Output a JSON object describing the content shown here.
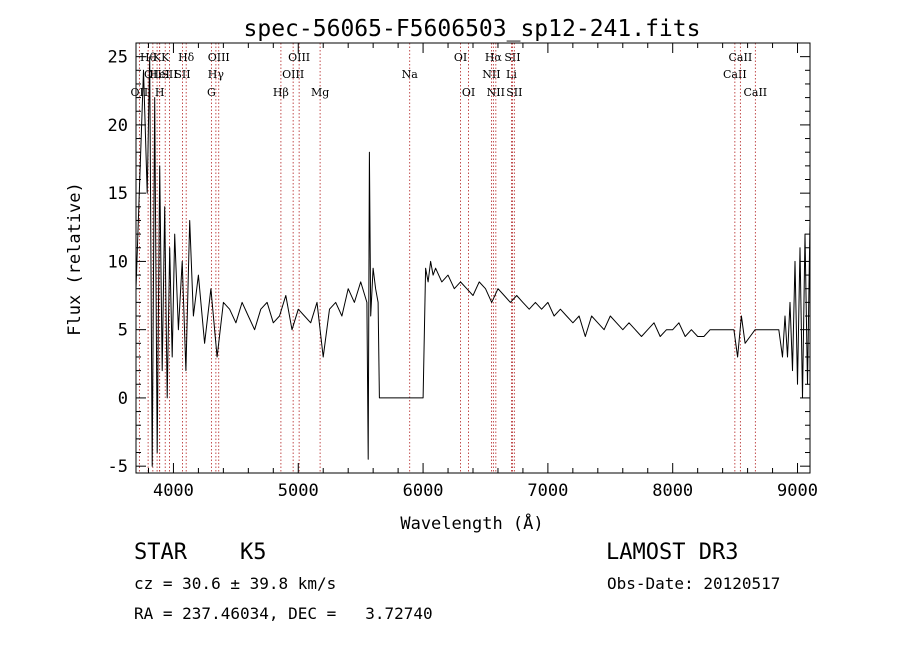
{
  "chart_data": {
    "type": "line",
    "title": "spec-56065-F5606503_sp12-241.fits",
    "xlabel": "Wavelength (Å)",
    "ylabel": "Flux (relative)",
    "xlim": [
      3700,
      9100
    ],
    "ylim": [
      -5.5,
      26
    ],
    "xticks": [
      4000,
      5000,
      6000,
      7000,
      8000,
      9000
    ],
    "yticks": [
      -5,
      0,
      5,
      10,
      15,
      20,
      25
    ],
    "grid": false,
    "series": [
      {
        "color": "#000000",
        "x": [
          3700,
          3760,
          3790,
          3810,
          3830,
          3850,
          3870,
          3890,
          3910,
          3930,
          3950,
          3970,
          3990,
          4010,
          4040,
          4070,
          4100,
          4130,
          4160,
          4200,
          4250,
          4300,
          4350,
          4400,
          4450,
          4500,
          4550,
          4600,
          4650,
          4700,
          4750,
          4800,
          4850,
          4900,
          4950,
          5000,
          5050,
          5100,
          5150,
          5200,
          5250,
          5300,
          5350,
          5400,
          5450,
          5500,
          5550,
          5560,
          5570,
          5580,
          5600,
          5620,
          5640,
          5650,
          5660,
          5680,
          5700,
          5800,
          5900,
          5960,
          5980,
          6000,
          6020,
          6040,
          6060,
          6080,
          6100,
          6150,
          6200,
          6250,
          6300,
          6350,
          6400,
          6450,
          6500,
          6550,
          6600,
          6650,
          6700,
          6750,
          6800,
          6850,
          6900,
          6950,
          7000,
          7050,
          7100,
          7150,
          7200,
          7250,
          7300,
          7350,
          7400,
          7450,
          7500,
          7550,
          7600,
          7650,
          7700,
          7750,
          7800,
          7850,
          7900,
          7950,
          8000,
          8050,
          8100,
          8150,
          8200,
          8250,
          8300,
          8350,
          8400,
          8450,
          8490,
          8520,
          8550,
          8580,
          8620,
          8660,
          8700,
          8750,
          8800,
          8850,
          8880,
          8900,
          8920,
          8940,
          8960,
          8980,
          9000,
          9020,
          9040,
          9060,
          9080,
          9100
        ],
        "y": [
          8.0,
          24.0,
          15.0,
          25.0,
          -5.0,
          22.0,
          -4.0,
          17.0,
          2.0,
          14.0,
          0.0,
          11.0,
          3.0,
          12.0,
          5.0,
          10.0,
          2.0,
          13.0,
          6.0,
          9.0,
          4.0,
          8.0,
          3.0,
          7.0,
          6.5,
          5.5,
          7.0,
          6.0,
          5.0,
          6.5,
          7.0,
          5.5,
          6.0,
          7.5,
          5.0,
          6.5,
          6.0,
          5.5,
          7.0,
          3.0,
          6.5,
          7.0,
          6.0,
          8.0,
          7.0,
          8.5,
          7.0,
          -4.5,
          18.0,
          6.0,
          9.5,
          8.0,
          7.0,
          0.0,
          0.0,
          0.0,
          0.0,
          0.0,
          0.0,
          0.0,
          0.0,
          0.0,
          9.5,
          8.5,
          10.0,
          9.0,
          9.5,
          8.5,
          9.0,
          8.0,
          8.5,
          8.0,
          7.5,
          8.5,
          8.0,
          7.0,
          8.0,
          7.5,
          7.0,
          7.5,
          7.0,
          6.5,
          7.0,
          6.5,
          7.0,
          6.0,
          6.5,
          6.0,
          5.5,
          6.0,
          4.5,
          6.0,
          5.5,
          5.0,
          6.0,
          5.5,
          5.0,
          5.5,
          5.0,
          4.5,
          5.0,
          5.5,
          4.5,
          5.0,
          5.0,
          5.5,
          4.5,
          5.0,
          4.5,
          4.5,
          5.0,
          5.0,
          5.0,
          5.0,
          5.0,
          3.0,
          6.0,
          4.0,
          4.5,
          5.0,
          5.0,
          5.0,
          5.0,
          5.0,
          3.0,
          6.0,
          3.0,
          7.0,
          2.0,
          10.0,
          1.0,
          11.0,
          0.0,
          12.0,
          1.0,
          13.0
        ]
      }
    ],
    "line_markers": [
      {
        "wavelength": 3797,
        "label": "Hθ",
        "row": 1
      },
      {
        "wavelength": 3835,
        "label": "OII",
        "row": 2
      },
      {
        "wavelength": 3727,
        "label": "OII",
        "row": 3
      },
      {
        "wavelength": 3869,
        "label": "K",
        "row": 1
      },
      {
        "wavelength": 3889,
        "label": "HeI",
        "row": 2
      },
      {
        "wavelength": 3890,
        "label": "H",
        "row": 3
      },
      {
        "wavelength": 3934,
        "label": "K",
        "row": 1
      },
      {
        "wavelength": 3968,
        "label": "SII",
        "row": 2
      },
      {
        "wavelength": 4102,
        "label": "Hδ",
        "row": 1
      },
      {
        "wavelength": 4072,
        "label": "SII",
        "row": 2
      },
      {
        "wavelength": 4304,
        "label": "G",
        "row": 3
      },
      {
        "wavelength": 4340,
        "label": "Hγ",
        "row": 2
      },
      {
        "wavelength": 4363,
        "label": "OIII",
        "row": 1
      },
      {
        "wavelength": 4861,
        "label": "Hβ",
        "row": 3
      },
      {
        "wavelength": 4959,
        "label": "OIII",
        "row": 2
      },
      {
        "wavelength": 5007,
        "label": "OIII",
        "row": 1
      },
      {
        "wavelength": 5175,
        "label": "Mg",
        "row": 3
      },
      {
        "wavelength": 5893,
        "label": "Na",
        "row": 2
      },
      {
        "wavelength": 6300,
        "label": "OI",
        "row": 1
      },
      {
        "wavelength": 6364,
        "label": "OI",
        "row": 3
      },
      {
        "wavelength": 6548,
        "label": "NII",
        "row": 2
      },
      {
        "wavelength": 6563,
        "label": "Hα",
        "row": 1
      },
      {
        "wavelength": 6583,
        "label": "NII",
        "row": 3
      },
      {
        "wavelength": 6708,
        "label": "Li",
        "row": 2
      },
      {
        "wavelength": 6716,
        "label": "SII",
        "row": 1
      },
      {
        "wavelength": 6731,
        "label": "SII",
        "row": 3
      },
      {
        "wavelength": 8498,
        "label": "CaII",
        "row": 2
      },
      {
        "wavelength": 8542,
        "label": "CaII",
        "row": 1
      },
      {
        "wavelength": 8662,
        "label": "CaII",
        "row": 3
      }
    ]
  },
  "info": {
    "class": "STAR",
    "subclass": "K5",
    "survey": "LAMOST DR3",
    "cz": "cz = 30.6 ± 39.8 km/s",
    "obs_date": "Obs-Date: 20120517",
    "coords": "RA = 237.46034, DEC =   3.72740"
  }
}
